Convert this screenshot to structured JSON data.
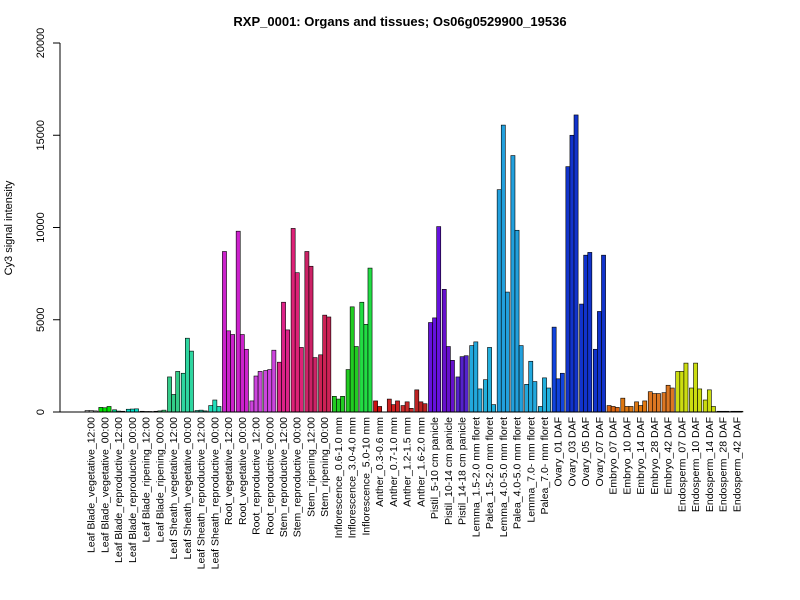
{
  "chart_data": {
    "type": "bar",
    "title": "RXP_0001: Organs and tissues; Os06g0529900_19536",
    "xlabel": "",
    "ylabel": "Cy3 signal intensity",
    "ylim": [
      0,
      20000
    ],
    "yticks": [
      0,
      5000,
      10000,
      15000,
      20000
    ],
    "grid": false,
    "legend": "none",
    "categories": [
      "Leaf Blade_vegetative_12:00",
      "Leaf Blade_vegetative_00:00",
      "Leaf Blade_reproductive_12:00",
      "Leaf Blade_reproductive_00:00",
      "Leaf Blade_ripening_12:00",
      "Leaf Blade_ripening_00:00",
      "Leaf Sheath_vegetative_12:00",
      "Leaf Sheath_vegetative_00:00",
      "Leaf Sheath_reproductive_12:00",
      "Leaf Sheath_reproductive_00:00",
      "Root_vegetative_12:00",
      "Root_vegetative_00:00",
      "Root_reproductive_12:00",
      "Root_reproductive_00:00",
      "Stem_reproductive_12:00",
      "Stem_reproductive_00:00",
      "Stem_ripening_12:00",
      "Stem_ripening_00:00",
      "Inflorescence_0.6-1.0 mm",
      "Inflorescence_3.0-4.0 mm",
      "Inflorescence_5.0-10 mm",
      "Anther_0.3-0.6 mm",
      "Anther_0.7-1.0 mm",
      "Anther_1.2-1.5 mm",
      "Anther_1.6-2.0 mm",
      "Pistil_5-10 cm panicle",
      "Pistil_10-14 cm panicle",
      "Pistil_14-18 cm panicle",
      "Lemma_1.5-2.0 mm floret",
      "Palea_1.5-2.0 mm floret",
      "Lemma_4.0-5.0 mm floret",
      "Palea_4.0-5.0 mm floret",
      "Lemma_7.0- mm floret",
      "Palea_7.0- mm floret",
      "Ovary_01 DAF",
      "Ovary_03 DAF",
      "Ovary_05 DAF",
      "Ovary_07 DAF",
      "Embryo_07 DAF",
      "Embryo_10 DAF",
      "Embryo_14 DAF",
      "Embryo_28 DAF",
      "Embryo_42 DAF",
      "Endosperm_07 DAF",
      "Endosperm_10 DAF",
      "Endosperm_14 DAF",
      "Endosperm_28 DAF",
      "Endosperm_42 DAF"
    ],
    "values": [
      [
        80,
        80,
        60
      ],
      [
        250,
        230,
        300
      ],
      [
        120,
        50,
        40
      ],
      [
        150,
        160,
        170
      ],
      [
        40,
        30,
        30
      ],
      [
        40,
        60,
        100
      ],
      [
        1900,
        950,
        2200
      ],
      [
        2100,
        4000,
        3300
      ],
      [
        80,
        100,
        60
      ],
      [
        350,
        650,
        300
      ],
      [
        8700,
        4400,
        4200
      ],
      [
        9800,
        4200,
        3400
      ],
      [
        600,
        1950,
        2200
      ],
      [
        2250,
        2300,
        3350
      ],
      [
        2700,
        5950,
        4450
      ],
      [
        9950,
        7550,
        3500
      ],
      [
        8700,
        7900,
        2950
      ],
      [
        3100,
        5250,
        5150
      ],
      [
        850,
        700,
        850
      ],
      [
        2300,
        5700,
        3550
      ],
      [
        5950,
        4750,
        7800
      ],
      [
        600,
        300,
        0
      ],
      [
        700,
        400,
        600
      ],
      [
        350,
        550,
        200
      ],
      [
        1200,
        550,
        450
      ],
      [
        4850,
        5100,
        10050
      ],
      [
        6650,
        3550,
        2800
      ],
      [
        1900,
        3000,
        3050
      ],
      [
        3600,
        3800,
        1250
      ],
      [
        1750,
        3500,
        400
      ],
      [
        12050,
        15550,
        6500
      ],
      [
        13900,
        9850,
        3600
      ],
      [
        1500,
        2750,
        1650
      ],
      [
        300,
        1850,
        1300
      ],
      [
        4600,
        1800,
        2100
      ],
      [
        13300,
        15000,
        16100
      ],
      [
        5850,
        8500,
        8650
      ],
      [
        3400,
        5450,
        8500
      ],
      [
        350,
        300,
        250
      ],
      [
        750,
        300,
        300
      ],
      [
        550,
        350,
        600
      ],
      [
        1100,
        1000,
        1000
      ],
      [
        1050,
        1450,
        1300
      ],
      [
        2200,
        2200,
        2650
      ],
      [
        1300,
        2650,
        1250
      ],
      [
        650,
        1200,
        300
      ],
      [
        40,
        40,
        40
      ],
      [
        40,
        40,
        40
      ]
    ],
    "group_colors": [
      "#d9d9d9",
      "#00e600",
      "#00cc8a",
      "#00e0c8",
      "#00a06a",
      "#40e080",
      "#33cc88",
      "#2ed6a0",
      "#22c4a0",
      "#20ddbb",
      "#cc22cc",
      "#cc22cc",
      "#cc44dd",
      "#cc44dd",
      "#dd2288",
      "#dd2277",
      "#cc2266",
      "#cc2255",
      "#22cc22",
      "#22cc22",
      "#22dd44",
      "#cc1111",
      "#cc2222",
      "#cc2a2a",
      "#bb2222",
      "#6611dd",
      "#6611cc",
      "#5522cc",
      "#22a8dd",
      "#22b0dd",
      "#22a0dd",
      "#22a0dd",
      "#22a8dd",
      "#22b0dd",
      "#1144dd",
      "#1133cc",
      "#1133cc",
      "#1133cc",
      "#dd6611",
      "#dd7711",
      "#dd7711",
      "#dd7722",
      "#dd7722",
      "#ccdd11",
      "#ccdd11",
      "#ccdd11",
      "#bbcc22",
      "#bbcc22"
    ],
    "series_note": ""
  }
}
